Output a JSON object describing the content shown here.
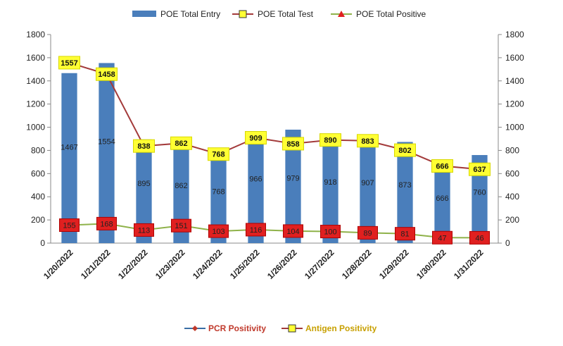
{
  "chart_data": {
    "type": "bar",
    "categories": [
      "1/20/2022",
      "1/21/2022",
      "1/22/2022",
      "1/23/2022",
      "1/24/2022",
      "1/25/2022",
      "1/26/2022",
      "1/27/2022",
      "1/28/2022",
      "1/29/2022",
      "1/30/2022",
      "1/31/2022"
    ],
    "series": [
      {
        "name": "POE Total Entry",
        "kind": "bar",
        "color": "#4a7ebb",
        "values": [
          1467,
          1554,
          895,
          862,
          768,
          966,
          979,
          918,
          907,
          873,
          666,
          760
        ]
      },
      {
        "name": "POE Total Test",
        "kind": "line",
        "color": "#a33a3a",
        "marker_color": "#ffff33",
        "values": [
          1557,
          1458,
          838,
          862,
          768,
          909,
          858,
          890,
          883,
          802,
          666,
          637
        ]
      },
      {
        "name": "POE Total Positive",
        "kind": "line",
        "color": "#8fb24a",
        "marker_color": "#e02020",
        "values": [
          155,
          168,
          113,
          151,
          103,
          116,
          104,
          100,
          89,
          81,
          47,
          46
        ]
      }
    ],
    "ylim": [
      0,
      1800
    ],
    "yticks": [
      0,
      200,
      400,
      600,
      800,
      1000,
      1200,
      1400,
      1600,
      1800
    ],
    "y2lim": [
      0,
      1800
    ],
    "y2ticks": [
      0,
      200,
      400,
      600,
      800,
      1000,
      1200,
      1400,
      1600,
      1800
    ],
    "legend_position": "top",
    "grid": false
  },
  "second_legend": {
    "items": [
      {
        "name": "PCR Positivity",
        "color": "#c0392b",
        "line_color": "#3a6ea5"
      },
      {
        "name": "Antigen Positivity",
        "color": "#c8a000",
        "line_color": "#a33a3a"
      }
    ]
  }
}
